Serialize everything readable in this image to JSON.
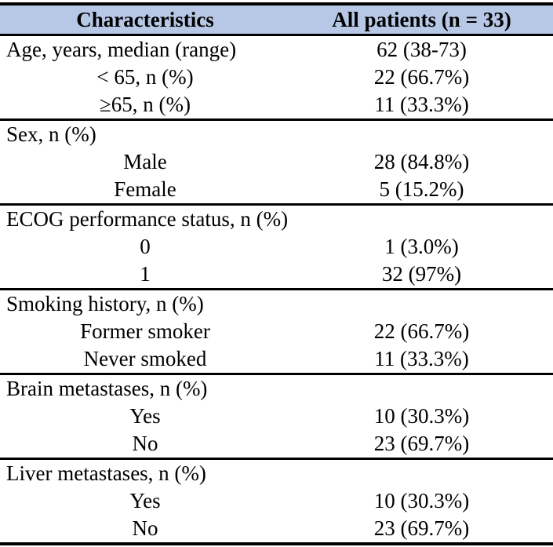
{
  "table": {
    "columns": {
      "characteristics": "Characteristics",
      "all_patients": "All patients (n = 33)"
    },
    "sections": [
      {
        "rows": [
          {
            "label": "Age, years, median (range)",
            "value": "62 (38-73)",
            "indent": false
          },
          {
            "label": "< 65, n (%)",
            "value": "22 (66.7%)",
            "indent": true
          },
          {
            "label": "≥65, n (%)",
            "value": "11 (33.3%)",
            "indent": true
          }
        ]
      },
      {
        "rows": [
          {
            "label": "Sex, n (%)",
            "value": "",
            "indent": false
          },
          {
            "label": "Male",
            "value": "28 (84.8%)",
            "indent": true
          },
          {
            "label": "Female",
            "value": "5 (15.2%)",
            "indent": true
          }
        ]
      },
      {
        "rows": [
          {
            "label": "ECOG performance status, n (%)",
            "value": "",
            "indent": false
          },
          {
            "label": "0",
            "value": "1 (3.0%)",
            "indent": true
          },
          {
            "label": "1",
            "value": "32 (97%)",
            "indent": true
          }
        ]
      },
      {
        "rows": [
          {
            "label": "Smoking history, n (%)",
            "value": "",
            "indent": false
          },
          {
            "label": "Former smoker",
            "value": "22 (66.7%)",
            "indent": true
          },
          {
            "label": "Never smoked",
            "value": "11 (33.3%)",
            "indent": true
          }
        ]
      },
      {
        "rows": [
          {
            "label": "Brain metastases, n (%)",
            "value": "",
            "indent": false
          },
          {
            "label": "Yes",
            "value": "10 (30.3%)",
            "indent": true
          },
          {
            "label": "No",
            "value": "23 (69.7%)",
            "indent": true
          }
        ]
      },
      {
        "rows": [
          {
            "label": "Liver metastases, n (%)",
            "value": "",
            "indent": false
          },
          {
            "label": "Yes",
            "value": "10 (30.3%)",
            "indent": true
          },
          {
            "label": "No",
            "value": "23 (69.7%)",
            "indent": true
          }
        ]
      }
    ],
    "colors": {
      "header_bg": "#b6c8e6",
      "rule": "#000000",
      "text": "#000000"
    }
  }
}
